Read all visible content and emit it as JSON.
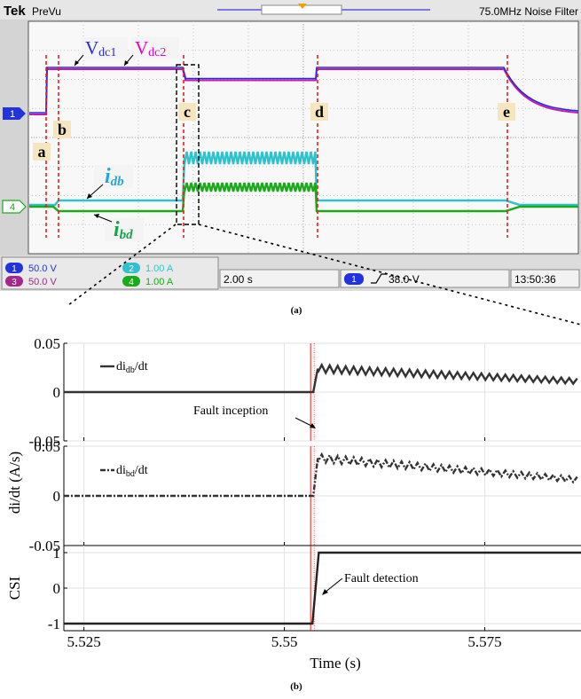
{
  "scope": {
    "brand": "Tek",
    "mode": "PreVu",
    "status": "75.0MHz  Noise Filter",
    "channels": [
      {
        "num": "1",
        "scale": "50.0 V",
        "color": "#2233dd"
      },
      {
        "num": "3",
        "scale": "50.0 V",
        "color": "#a3288a"
      },
      {
        "num": "2",
        "scale": "1.00 A",
        "color": "#33c0cc"
      },
      {
        "num": "4",
        "scale": "1.00 A",
        "color": "#1aaa1a"
      }
    ],
    "timebase": "2.00 s",
    "trigger_channel": "1",
    "trigger": "38.0 V",
    "clock": "13:50:36",
    "markers": [
      "a",
      "b",
      "c",
      "d",
      "e"
    ],
    "signal_labels": {
      "vdc1": {
        "main": "V",
        "sub": "dc1",
        "color": "#2a2ad6"
      },
      "vdc2": {
        "main": "V",
        "sub": "dc2",
        "color": "#e000d0"
      },
      "idb": {
        "main": "i",
        "sub": "db",
        "color": "#22a8d8"
      },
      "ibd": {
        "main": "i",
        "sub": "bd",
        "color": "#17a34a"
      }
    },
    "channel_markers": [
      "1",
      "4"
    ],
    "caption": "(a)"
  },
  "chart_data": {
    "type": "line",
    "x": {
      "label": "Time (s)",
      "ticks": [
        5.525,
        5.55,
        5.575
      ],
      "tick_labels": [
        "5.525",
        "5.55",
        "5.575"
      ],
      "range": [
        5.5225,
        5.587
      ]
    },
    "ylabel": "di/dt (A/s)",
    "panels": [
      {
        "ylim": [
          -0.05,
          0.05
        ],
        "ticks": [
          "0.05",
          "0",
          "-0.05"
        ],
        "series": [
          {
            "name": "didb/dt",
            "main": "di",
            "sub": "db",
            "tail": "/dt",
            "style": "solid",
            "pre": 0.0,
            "jump": 0.024,
            "end": 0.011
          }
        ]
      },
      {
        "ylim": [
          -0.05,
          0.05
        ],
        "ticks": [
          "0.05",
          "0",
          "-0.05"
        ],
        "series": [
          {
            "name": "dibd/dt",
            "main": "di",
            "sub": "bd",
            "tail": "/dt",
            "style": "dashdot",
            "pre": 0.0,
            "jump": 0.038,
            "end": 0.016
          }
        ]
      },
      {
        "ylim": [
          -1.2,
          1.2
        ],
        "ylabel": "CSI",
        "ticks": [
          "1",
          "0",
          "-1"
        ],
        "series": [
          {
            "name": "CSI",
            "points": [
              [
                5.5225,
                -1
              ],
              [
                5.5535,
                -1
              ],
              [
                5.5543,
                1
              ],
              [
                5.587,
                1
              ]
            ]
          }
        ]
      }
    ],
    "fault_time": 5.5535,
    "annotations": {
      "inception": "Fault inception",
      "detection": "Fault detection"
    },
    "caption": "(b)"
  }
}
